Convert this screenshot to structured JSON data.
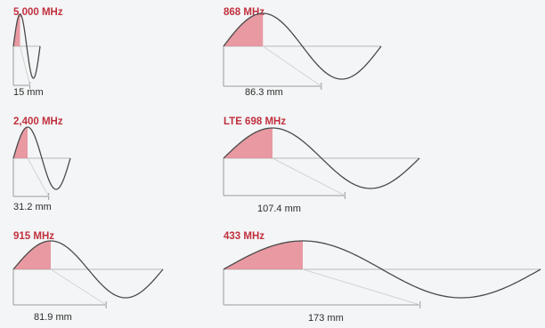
{
  "panels": [
    {
      "id": "p5000",
      "frequency": "5,000 MHz",
      "length": "15 mm"
    },
    {
      "id": "p868",
      "frequency": "868 MHz",
      "length": "86.3 mm"
    },
    {
      "id": "p2400",
      "frequency": "2,400 MHz",
      "length": "31.2 mm"
    },
    {
      "id": "p698",
      "frequency": "LTE 698 MHz",
      "length": "107.4 mm"
    },
    {
      "id": "p915",
      "frequency": "915 MHz",
      "length": "81.9 mm"
    },
    {
      "id": "p433",
      "frequency": "433 MHz",
      "length": "173 mm"
    }
  ],
  "colors": {
    "frequency_text": "#c0303e",
    "highlight_fill": "#e47a86",
    "wave_stroke": "#4a4a4a",
    "background": "#f4f5f6"
  }
}
